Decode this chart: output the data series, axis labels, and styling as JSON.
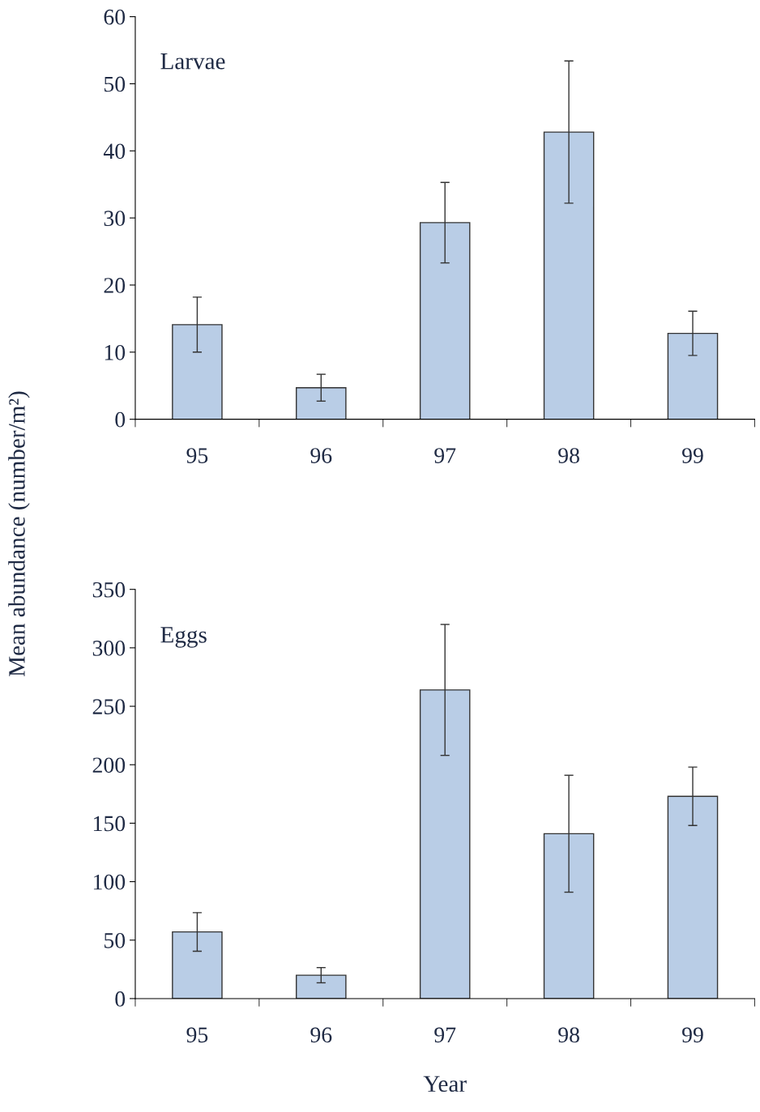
{
  "chart_data": [
    {
      "type": "bar",
      "title": "Larvae",
      "ylabel": "Mean abundance (number/m²)",
      "categories": [
        "95",
        "96",
        "97",
        "98",
        "99"
      ],
      "values": [
        14.1,
        4.7,
        29.3,
        42.8,
        12.8
      ],
      "errors": [
        4.1,
        2,
        6,
        10.6,
        3.3
      ],
      "color": "#b9cde6",
      "ylim": [
        0,
        60
      ],
      "yticks": [
        0,
        10,
        20,
        30,
        40,
        50,
        60
      ],
      "grid": false
    },
    {
      "type": "bar",
      "title": "Eggs",
      "xlabel": "Year",
      "categories": [
        "95",
        "96",
        "97",
        "98",
        "99"
      ],
      "values": [
        57,
        20,
        264,
        141,
        173
      ],
      "errors": [
        16.5,
        6.5,
        56,
        50,
        25
      ],
      "color": "#b9cde6",
      "ylim": [
        0,
        350
      ],
      "yticks": [
        0,
        50,
        100,
        150,
        200,
        250,
        300,
        350
      ],
      "grid": false
    }
  ]
}
